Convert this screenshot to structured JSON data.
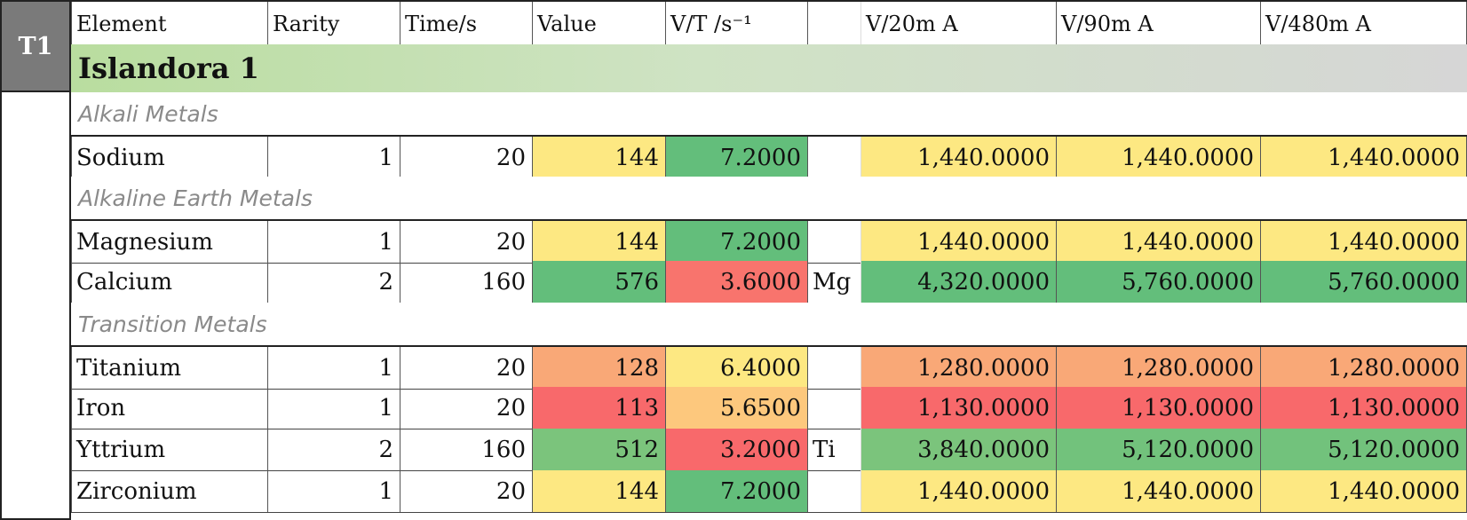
{
  "badge": "T1",
  "headers": [
    "Element",
    "Rarity",
    "Time/s",
    "Value",
    "V/T /s⁻¹",
    "",
    "V/20m A",
    "V/90m A",
    "V/480m A"
  ],
  "island_title": "Islandora 1",
  "groups": [
    {
      "name": "Alkali Metals",
      "rows": [
        {
          "element": "Sodium",
          "rarity": "1",
          "time": "20",
          "value": "144",
          "vt": "7.2000",
          "req": "",
          "v20": "1,440.0000",
          "v90": "1,440.0000",
          "v480": "1,440.0000",
          "colors": {
            "value": "#fde882",
            "vt": "#63be7b",
            "v20": "#fde882",
            "v90": "#fde882",
            "v480": "#fde882"
          }
        }
      ]
    },
    {
      "name": "Alkaline Earth Metals",
      "rows": [
        {
          "element": "Magnesium",
          "rarity": "1",
          "time": "20",
          "value": "144",
          "vt": "7.2000",
          "req": "",
          "v20": "1,440.0000",
          "v90": "1,440.0000",
          "v480": "1,440.0000",
          "colors": {
            "value": "#fde882",
            "vt": "#63be7b",
            "v20": "#fde882",
            "v90": "#fde882",
            "v480": "#fde882"
          }
        },
        {
          "element": "Calcium",
          "rarity": "2",
          "time": "160",
          "value": "576",
          "vt": "3.6000",
          "req": "Mg",
          "v20": "4,320.0000",
          "v90": "5,760.0000",
          "v480": "5,760.0000",
          "colors": {
            "value": "#63be7b",
            "vt": "#f8746d",
            "v20": "#63be7b",
            "v90": "#63be7b",
            "v480": "#63be7b"
          }
        }
      ]
    },
    {
      "name": "Transition Metals",
      "rows": [
        {
          "element": "Titanium",
          "rarity": "1",
          "time": "20",
          "value": "128",
          "vt": "6.4000",
          "req": "",
          "v20": "1,280.0000",
          "v90": "1,280.0000",
          "v480": "1,280.0000",
          "colors": {
            "value": "#f9a877",
            "vt": "#fde882",
            "v20": "#f9a877",
            "v90": "#f9a877",
            "v480": "#f9a877"
          }
        },
        {
          "element": "Iron",
          "rarity": "1",
          "time": "20",
          "value": "113",
          "vt": "5.6500",
          "req": "",
          "v20": "1,130.0000",
          "v90": "1,130.0000",
          "v480": "1,130.0000",
          "colors": {
            "value": "#f8696b",
            "vt": "#fdc87d",
            "v20": "#f8696b",
            "v90": "#f8696b",
            "v480": "#f8696b"
          }
        },
        {
          "element": "Yttrium",
          "rarity": "2",
          "time": "160",
          "value": "512",
          "vt": "3.2000",
          "req": "Ti",
          "v20": "3,840.0000",
          "v90": "5,120.0000",
          "v480": "5,120.0000",
          "colors": {
            "value": "#7bc47c",
            "vt": "#f8696b",
            "v20": "#7bc47c",
            "v90": "#72c27c",
            "v480": "#72c27c"
          }
        },
        {
          "element": "Zirconium",
          "rarity": "1",
          "time": "20",
          "value": "144",
          "vt": "7.2000",
          "req": "",
          "v20": "1,440.0000",
          "v90": "1,440.0000",
          "v480": "1,440.0000",
          "colors": {
            "value": "#fde882",
            "vt": "#63be7b",
            "v20": "#fde882",
            "v90": "#fde882",
            "v480": "#fde882"
          }
        }
      ]
    }
  ]
}
